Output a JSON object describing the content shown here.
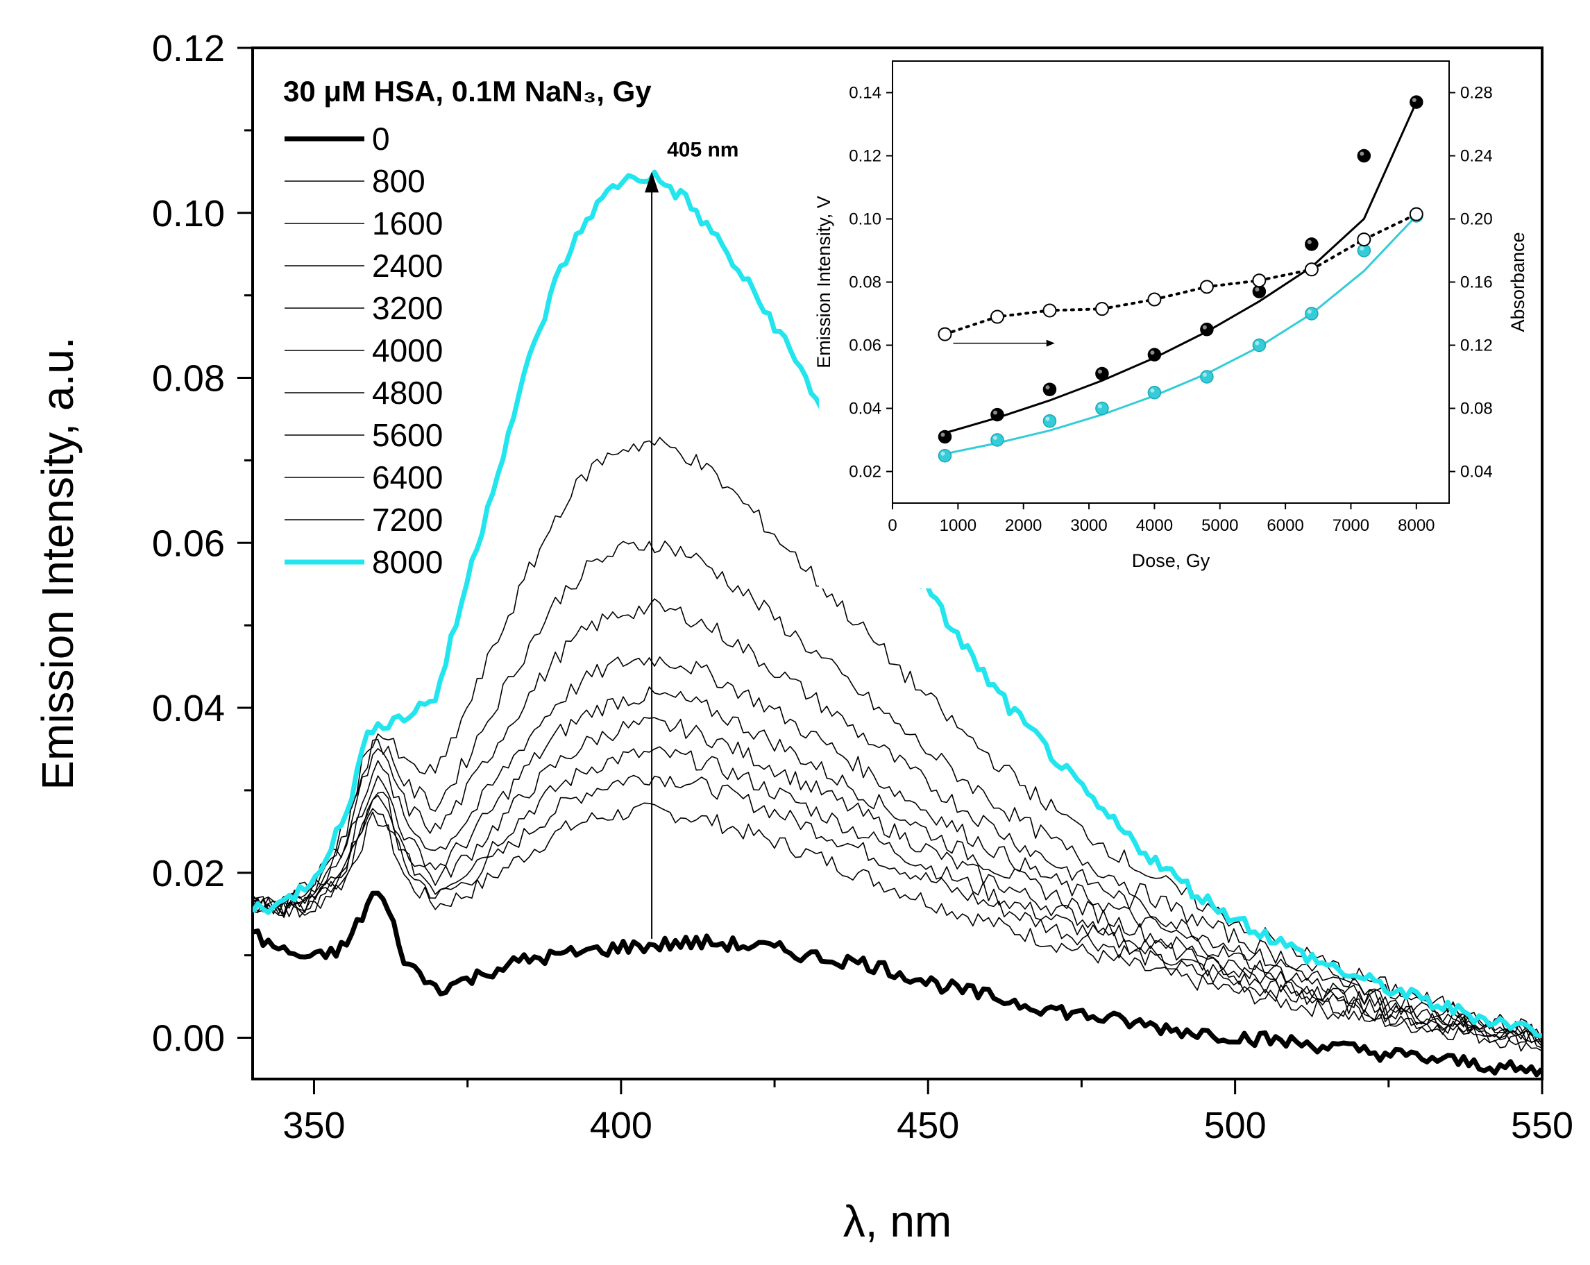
{
  "chart_data": [
    {
      "type": "line",
      "xlabel": "λ, nm",
      "ylabel": "Emission Intensity, a.u.",
      "xlim": [
        340,
        550
      ],
      "ylim": [
        -0.005,
        0.12
      ],
      "xticks": [
        350,
        400,
        450,
        500,
        550
      ],
      "yticks": [
        0.0,
        0.02,
        0.04,
        0.06,
        0.08,
        0.1,
        0.12
      ],
      "ytick_labels": [
        "0.00",
        "0.02",
        "0.04",
        "0.06",
        "0.08",
        "0.10",
        "0.12"
      ],
      "xtick_labels": [
        "350",
        "400",
        "450",
        "500",
        "550"
      ],
      "legend_title": "30 μM HSA, 0.1M NaN₃, Gy",
      "legend_placement": "top-left",
      "annotation": {
        "text": "405 nm",
        "x": 405,
        "y_from": 0.012,
        "y_to": 0.105
      },
      "x": [
        340,
        345,
        350,
        355,
        358,
        360,
        362,
        365,
        370,
        375,
        380,
        385,
        390,
        395,
        400,
        405,
        410,
        415,
        420,
        425,
        430,
        435,
        440,
        445,
        450,
        455,
        460,
        465,
        470,
        475,
        480,
        485,
        490,
        495,
        500,
        505,
        510,
        515,
        520,
        525,
        530,
        535,
        540,
        545,
        550
      ],
      "series": [
        {
          "name": "0",
          "color": "#000000",
          "emphasis": "bold",
          "values": [
            0.0125,
            0.0105,
            0.0095,
            0.011,
            0.015,
            0.018,
            0.0155,
            0.009,
            0.006,
            0.007,
            0.0085,
            0.0095,
            0.01,
            0.0105,
            0.011,
            0.0112,
            0.0115,
            0.0115,
            0.0112,
            0.0108,
            0.01,
            0.0095,
            0.009,
            0.008,
            0.0068,
            0.0058,
            0.005,
            0.0042,
            0.0035,
            0.0028,
            0.0022,
            0.0016,
            0.001,
            0.0006,
            0.0002,
            -0.0002,
            -0.0006,
            -0.001,
            -0.0015,
            -0.002,
            -0.0024,
            -0.0028,
            -0.0032,
            -0.0038,
            -0.0042
          ]
        },
        {
          "name": "800",
          "color": "#000000",
          "values": [
            0.017,
            0.0155,
            0.016,
            0.019,
            0.024,
            0.027,
            0.025,
            0.019,
            0.016,
            0.0175,
            0.02,
            0.0225,
            0.025,
            0.0265,
            0.0272,
            0.0275,
            0.027,
            0.0262,
            0.025,
            0.0238,
            0.0225,
            0.021,
            0.0195,
            0.018,
            0.0166,
            0.0152,
            0.014,
            0.0128,
            0.0116,
            0.0105,
            0.0094,
            0.0084,
            0.0074,
            0.0065,
            0.0056,
            0.0048,
            0.004,
            0.0033,
            0.0026,
            0.002,
            0.0014,
            0.0008,
            0.0002,
            -0.0004,
            -0.001
          ]
        },
        {
          "name": "1600",
          "color": "#000000",
          "values": [
            0.0168,
            0.0152,
            0.016,
            0.0195,
            0.025,
            0.028,
            0.0262,
            0.0205,
            0.017,
            0.019,
            0.022,
            0.025,
            0.028,
            0.03,
            0.0312,
            0.0318,
            0.0312,
            0.0302,
            0.0288,
            0.0274,
            0.0258,
            0.0242,
            0.0225,
            0.0208,
            0.0192,
            0.0176,
            0.0162,
            0.0148,
            0.0134,
            0.0122,
            0.011,
            0.0098,
            0.0087,
            0.0077,
            0.0067,
            0.0058,
            0.0049,
            0.0041,
            0.0033,
            0.0026,
            0.0019,
            0.0013,
            0.0007,
            0.0001,
            -0.0005
          ]
        },
        {
          "name": "2400",
          "color": "#000000",
          "values": [
            0.0166,
            0.0152,
            0.0162,
            0.02,
            0.0258,
            0.029,
            0.0272,
            0.0215,
            0.018,
            0.0205,
            0.024,
            0.0275,
            0.0305,
            0.0328,
            0.034,
            0.0345,
            0.034,
            0.033,
            0.0315,
            0.0298,
            0.0281,
            0.0263,
            0.0245,
            0.0226,
            0.0208,
            0.0191,
            0.0175,
            0.016,
            0.0145,
            0.0132,
            0.0119,
            0.0106,
            0.0095,
            0.0084,
            0.0073,
            0.0063,
            0.0054,
            0.0045,
            0.0037,
            0.0029,
            0.0022,
            0.0015,
            0.0009,
            0.0003,
            -0.0003
          ]
        },
        {
          "name": "3200",
          "color": "#000000",
          "values": [
            0.0165,
            0.0153,
            0.0165,
            0.0205,
            0.0265,
            0.03,
            0.0282,
            0.0225,
            0.019,
            0.022,
            0.026,
            0.03,
            0.0335,
            0.036,
            0.0375,
            0.038,
            0.0375,
            0.0362,
            0.0345,
            0.0327,
            0.0308,
            0.0288,
            0.0268,
            0.0248,
            0.0228,
            0.0209,
            0.0192,
            0.0175,
            0.0159,
            0.0144,
            0.013,
            0.0116,
            0.0104,
            0.0092,
            0.008,
            0.0069,
            0.0059,
            0.005,
            0.0041,
            0.0033,
            0.0025,
            0.0018,
            0.0011,
            0.0005,
            -0.0001
          ]
        },
        {
          "name": "4000",
          "color": "#000000",
          "values": [
            0.0164,
            0.0155,
            0.017,
            0.0215,
            0.028,
            0.0315,
            0.0298,
            0.024,
            0.0205,
            0.024,
            0.0285,
            0.033,
            0.037,
            0.0395,
            0.041,
            0.0415,
            0.041,
            0.0396,
            0.0378,
            0.0358,
            0.0337,
            0.0315,
            0.0293,
            0.0271,
            0.025,
            0.0229,
            0.021,
            0.0192,
            0.0175,
            0.0158,
            0.0143,
            0.0128,
            0.0114,
            0.0101,
            0.0088,
            0.0076,
            0.0065,
            0.0055,
            0.0046,
            0.0037,
            0.0028,
            0.002,
            0.0013,
            0.0006,
            0.0
          ]
        },
        {
          "name": "4800",
          "color": "#000000",
          "values": [
            0.0163,
            0.0157,
            0.0175,
            0.0225,
            0.0295,
            0.033,
            0.0315,
            0.026,
            0.0225,
            0.0265,
            0.0315,
            0.0365,
            0.041,
            0.0438,
            0.0455,
            0.046,
            0.0454,
            0.0438,
            0.0418,
            0.0396,
            0.0372,
            0.0348,
            0.0323,
            0.0298,
            0.0275,
            0.0252,
            0.0231,
            0.0211,
            0.0192,
            0.0174,
            0.0157,
            0.0141,
            0.0126,
            0.0112,
            0.0098,
            0.0085,
            0.0073,
            0.0062,
            0.0052,
            0.0042,
            0.0033,
            0.0024,
            0.0016,
            0.0008,
            0.0001
          ]
        },
        {
          "name": "5600",
          "color": "#000000",
          "values": [
            0.0162,
            0.0158,
            0.018,
            0.0235,
            0.031,
            0.0345,
            0.0332,
            0.028,
            0.025,
            0.03,
            0.036,
            0.0415,
            0.0465,
            0.0498,
            0.0515,
            0.0522,
            0.0514,
            0.0496,
            0.0472,
            0.0446,
            0.0419,
            0.0391,
            0.0363,
            0.0335,
            0.0308,
            0.0282,
            0.0258,
            0.0235,
            0.0214,
            0.0194,
            0.0175,
            0.0157,
            0.014,
            0.0124,
            0.0109,
            0.0095,
            0.0082,
            0.007,
            0.0058,
            0.0047,
            0.0037,
            0.0028,
            0.0019,
            0.0011,
            0.0003
          ]
        },
        {
          "name": "6400",
          "color": "#000000",
          "values": [
            0.0161,
            0.016,
            0.0185,
            0.0245,
            0.0325,
            0.036,
            0.035,
            0.0305,
            0.028,
            0.034,
            0.041,
            0.0475,
            0.0535,
            0.0572,
            0.0592,
            0.06,
            0.059,
            0.0568,
            0.054,
            0.0509,
            0.0477,
            0.0444,
            0.0411,
            0.0379,
            0.0348,
            0.0318,
            0.029,
            0.0264,
            0.024,
            0.0217,
            0.0196,
            0.0176,
            0.0157,
            0.0139,
            0.0122,
            0.0106,
            0.0091,
            0.0078,
            0.0065,
            0.0053,
            0.0042,
            0.0032,
            0.0022,
            0.0013,
            0.0005
          ]
        },
        {
          "name": "7200",
          "color": "#000000",
          "values": [
            0.016,
            0.0162,
            0.019,
            0.0255,
            0.0335,
            0.037,
            0.0362,
            0.033,
            0.032,
            0.04,
            0.0485,
            0.0565,
            0.064,
            0.069,
            0.0715,
            0.0722,
            0.071,
            0.0683,
            0.0648,
            0.061,
            0.057,
            0.053,
            0.049,
            0.045,
            0.0412,
            0.0375,
            0.0341,
            0.0309,
            0.028,
            0.0252,
            0.0227,
            0.0203,
            0.0181,
            0.016,
            0.0141,
            0.0123,
            0.0106,
            0.009,
            0.0075,
            0.0062,
            0.0049,
            0.0037,
            0.0026,
            0.0016,
            0.0007
          ]
        },
        {
          "name": "8000",
          "color": "#22e5ee",
          "emphasis": "bold",
          "values": [
            0.0158,
            0.0162,
            0.0195,
            0.0265,
            0.035,
            0.0385,
            0.0382,
            0.039,
            0.0415,
            0.0555,
            0.069,
            0.082,
            0.093,
            0.1,
            0.104,
            0.1045,
            0.102,
            0.0975,
            0.092,
            0.0865,
            0.08,
            0.073,
            0.0665,
            0.06,
            0.054,
            0.0485,
            0.043,
            0.0385,
            0.0345,
            0.03,
            0.0262,
            0.0228,
            0.0196,
            0.0168,
            0.0145,
            0.0125,
            0.0105,
            0.0088,
            0.0073,
            0.006,
            0.0047,
            0.0035,
            0.0025,
            0.0016,
            0.0008
          ]
        }
      ]
    },
    {
      "type": "scatter",
      "xlabel": "Dose, Gy",
      "ylabel": "Emission Intensity, V",
      "y2label": "Absorbance",
      "xlim": [
        0,
        8500
      ],
      "ylim": [
        0.01,
        0.15
      ],
      "y2lim": [
        0.02,
        0.3
      ],
      "xticks": [
        0,
        1000,
        2000,
        3000,
        4000,
        5000,
        6000,
        7000,
        8000
      ],
      "xtick_labels": [
        "0",
        "1000",
        "2000",
        "3000",
        "4000",
        "5000",
        "6000",
        "7000",
        "8000"
      ],
      "yticks": [
        0.02,
        0.04,
        0.06,
        0.08,
        0.1,
        0.12,
        0.14
      ],
      "ytick_labels": [
        "0.02",
        "0.04",
        "0.06",
        "0.08",
        "0.10",
        "0.12",
        "0.14"
      ],
      "y2ticks": [
        0.04,
        0.08,
        0.12,
        0.16,
        0.2,
        0.24,
        0.28
      ],
      "y2tick_labels": [
        "0.04",
        "0.08",
        "0.12",
        "0.16",
        "0.20",
        "0.24",
        "0.28"
      ],
      "x": [
        800,
        1600,
        2400,
        3200,
        4000,
        4800,
        5600,
        6400,
        7200,
        8000
      ],
      "series": [
        {
          "color": "#000000",
          "marker": "filled",
          "axis": "left",
          "values": [
            0.031,
            0.038,
            0.046,
            0.051,
            0.057,
            0.065,
            0.077,
            0.092,
            0.12,
            0.137
          ],
          "fit": [
            0.0322,
            0.037,
            0.0425,
            0.0488,
            0.056,
            0.0643,
            0.0739,
            0.0848,
            0.1,
            0.137
          ]
        },
        {
          "color": "#33ccd8",
          "marker": "filled",
          "axis": "left",
          "values": [
            0.025,
            0.03,
            0.036,
            0.04,
            0.045,
            0.05,
            0.06,
            0.07,
            0.09,
            0.101
          ],
          "fit": [
            0.0256,
            0.029,
            0.033,
            0.038,
            0.044,
            0.051,
            0.0595,
            0.07,
            0.0835,
            0.101
          ]
        },
        {
          "color": "#000000",
          "marker": "open",
          "axis": "right",
          "line": "dotted",
          "values": [
            0.127,
            0.138,
            0.142,
            0.143,
            0.149,
            0.157,
            0.161,
            0.168,
            0.187,
            0.203
          ]
        }
      ]
    }
  ]
}
